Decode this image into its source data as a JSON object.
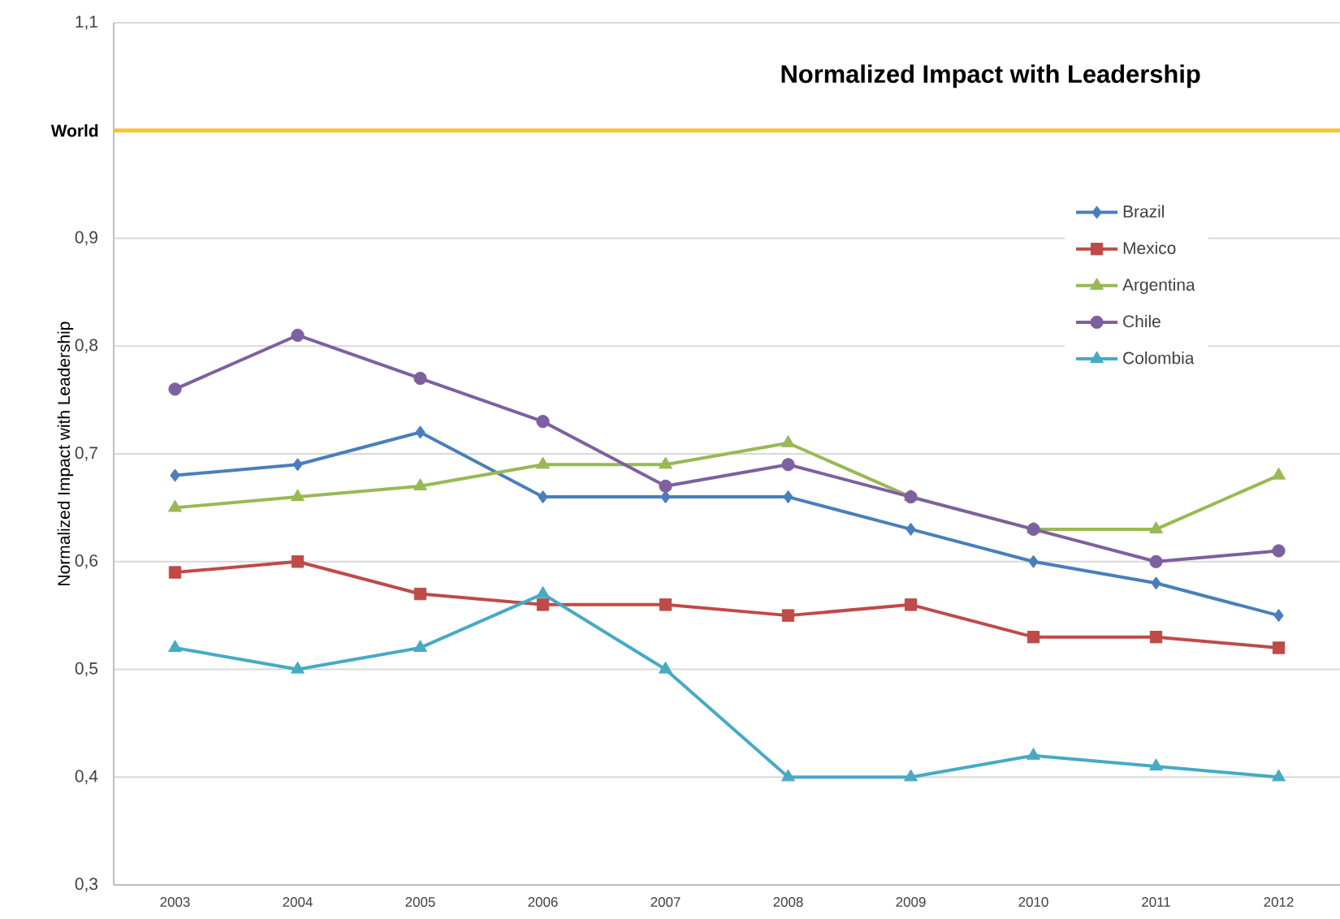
{
  "chart_data": {
    "type": "line",
    "title": "Normalized Impact with Leadership",
    "ylabel": "Normalized Impact with Leadership",
    "categories": [
      "2003",
      "2004",
      "2005",
      "2006",
      "2007",
      "2008",
      "2009",
      "2010",
      "2011",
      "2012"
    ],
    "series": [
      {
        "name": "Brazil",
        "color": "#4a7ebb",
        "marker": "diamond",
        "values": [
          0.68,
          0.69,
          0.72,
          0.66,
          0.66,
          0.66,
          0.63,
          0.6,
          0.58,
          0.55
        ]
      },
      {
        "name": "Mexico",
        "color": "#be4b48",
        "marker": "square",
        "values": [
          0.59,
          0.6,
          0.57,
          0.56,
          0.56,
          0.55,
          0.56,
          0.53,
          0.53,
          0.52
        ]
      },
      {
        "name": "Argentina",
        "color": "#98b954",
        "marker": "triangle",
        "values": [
          0.65,
          0.66,
          0.67,
          0.69,
          0.69,
          0.71,
          0.66,
          0.63,
          0.63,
          0.68
        ]
      },
      {
        "name": "Chile",
        "color": "#7d60a0",
        "marker": "circle",
        "values": [
          0.76,
          0.81,
          0.77,
          0.73,
          0.67,
          0.69,
          0.66,
          0.63,
          0.6,
          0.61
        ]
      },
      {
        "name": "Colombia",
        "color": "#46aac5",
        "marker": "triangle",
        "values": [
          0.52,
          0.5,
          0.52,
          0.57,
          0.5,
          0.4,
          0.4,
          0.42,
          0.41,
          0.4
        ]
      }
    ],
    "ylim": [
      0.3,
      1.1
    ],
    "yticks": [
      {
        "value": 0.3,
        "label": "0,3"
      },
      {
        "value": 0.4,
        "label": "0,4"
      },
      {
        "value": 0.5,
        "label": "0,5"
      },
      {
        "value": 0.6,
        "label": "0,6"
      },
      {
        "value": 0.7,
        "label": "0,7"
      },
      {
        "value": 0.8,
        "label": "0,8"
      },
      {
        "value": 0.9,
        "label": "0,9"
      },
      {
        "value": 1.0,
        "label": null
      },
      {
        "value": 1.1,
        "label": "1,1"
      }
    ],
    "ref_lines": [
      {
        "axis": "y",
        "value": 1.0,
        "label": "World",
        "color": "#f9c23c"
      }
    ],
    "grid": "y",
    "legend": "top right"
  }
}
